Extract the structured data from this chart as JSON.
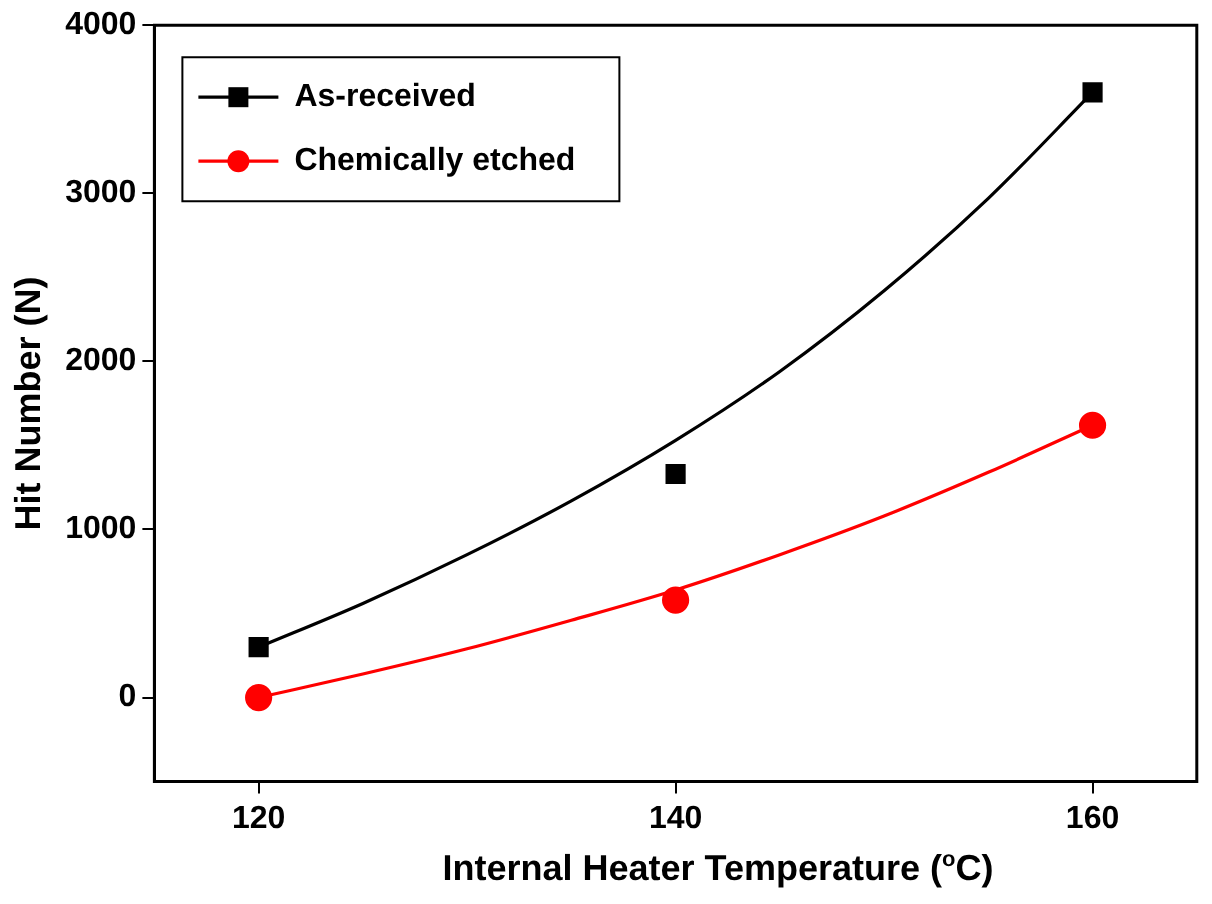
{
  "chart_data": {
    "type": "scatter",
    "xlabel": "Internal Heater Temperature ($^{o}$C)",
    "ylabel": "Hit Number (N)",
    "xlim": [
      115,
      165
    ],
    "ylim": [
      -500,
      4000
    ],
    "xticks": [
      120,
      140,
      160
    ],
    "yticks": [
      0,
      1000,
      2000,
      3000,
      4000
    ],
    "legend": "top left",
    "series": [
      {
        "name": "As-received",
        "marker": "square",
        "color": "#000000",
        "x": [
          120,
          140,
          160
        ],
        "values": [
          300,
          1330,
          3600
        ]
      },
      {
        "name": "Chemically etched",
        "marker": "circle",
        "color": "#ff0000",
        "x": [
          120,
          140,
          160
        ],
        "values": [
          0,
          580,
          1620
        ]
      },
      {
        "type": "line",
        "marker": "none",
        "color": "#000000",
        "x": [
          120,
          125,
          130,
          135,
          140,
          145,
          150,
          155,
          160
        ],
        "values": [
          300,
          560,
          850,
          1170,
          1530,
          1940,
          2420,
          2970,
          3600
        ]
      },
      {
        "type": "line",
        "marker": "none",
        "color": "#ff0000",
        "x": [
          120,
          125,
          130,
          135,
          140,
          145,
          150,
          155,
          160
        ],
        "values": [
          0,
          140,
          290,
          460,
          640,
          850,
          1080,
          1340,
          1620
        ]
      }
    ]
  }
}
